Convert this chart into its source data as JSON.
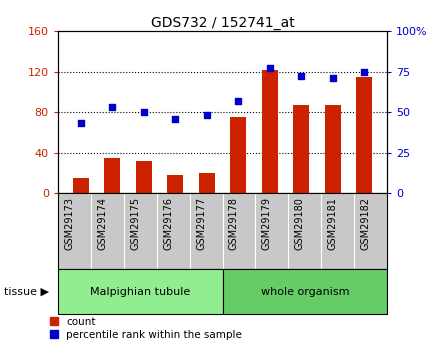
{
  "title": "GDS732 / 152741_at",
  "samples": [
    "GSM29173",
    "GSM29174",
    "GSM29175",
    "GSM29176",
    "GSM29177",
    "GSM29178",
    "GSM29179",
    "GSM29180",
    "GSM29181",
    "GSM29182"
  ],
  "counts": [
    15,
    35,
    32,
    18,
    20,
    75,
    122,
    87,
    87,
    115
  ],
  "percentiles": [
    43,
    53,
    50,
    46,
    48,
    57,
    77,
    72,
    71,
    75
  ],
  "tissue_groups": [
    {
      "label": "Malpighian tubule",
      "start": 0,
      "end": 5,
      "color": "#90EE90"
    },
    {
      "label": "whole organism",
      "start": 5,
      "end": 10,
      "color": "#66CC66"
    }
  ],
  "left_ylim": [
    0,
    160
  ],
  "left_yticks": [
    0,
    40,
    80,
    120,
    160
  ],
  "right_ylim": [
    0,
    100
  ],
  "right_yticks": [
    0,
    25,
    50,
    75,
    100
  ],
  "bar_color": "#CC2200",
  "dot_color": "#0000CC",
  "grid_color": "#000000",
  "xtick_bg_color": "#C8C8C8",
  "plot_bg": "#FFFFFF",
  "left_tick_color": "#CC2200",
  "right_tick_color": "#0000CC",
  "tissue_label": "tissue",
  "legend_count_label": "count",
  "legend_pct_label": "percentile rank within the sample"
}
